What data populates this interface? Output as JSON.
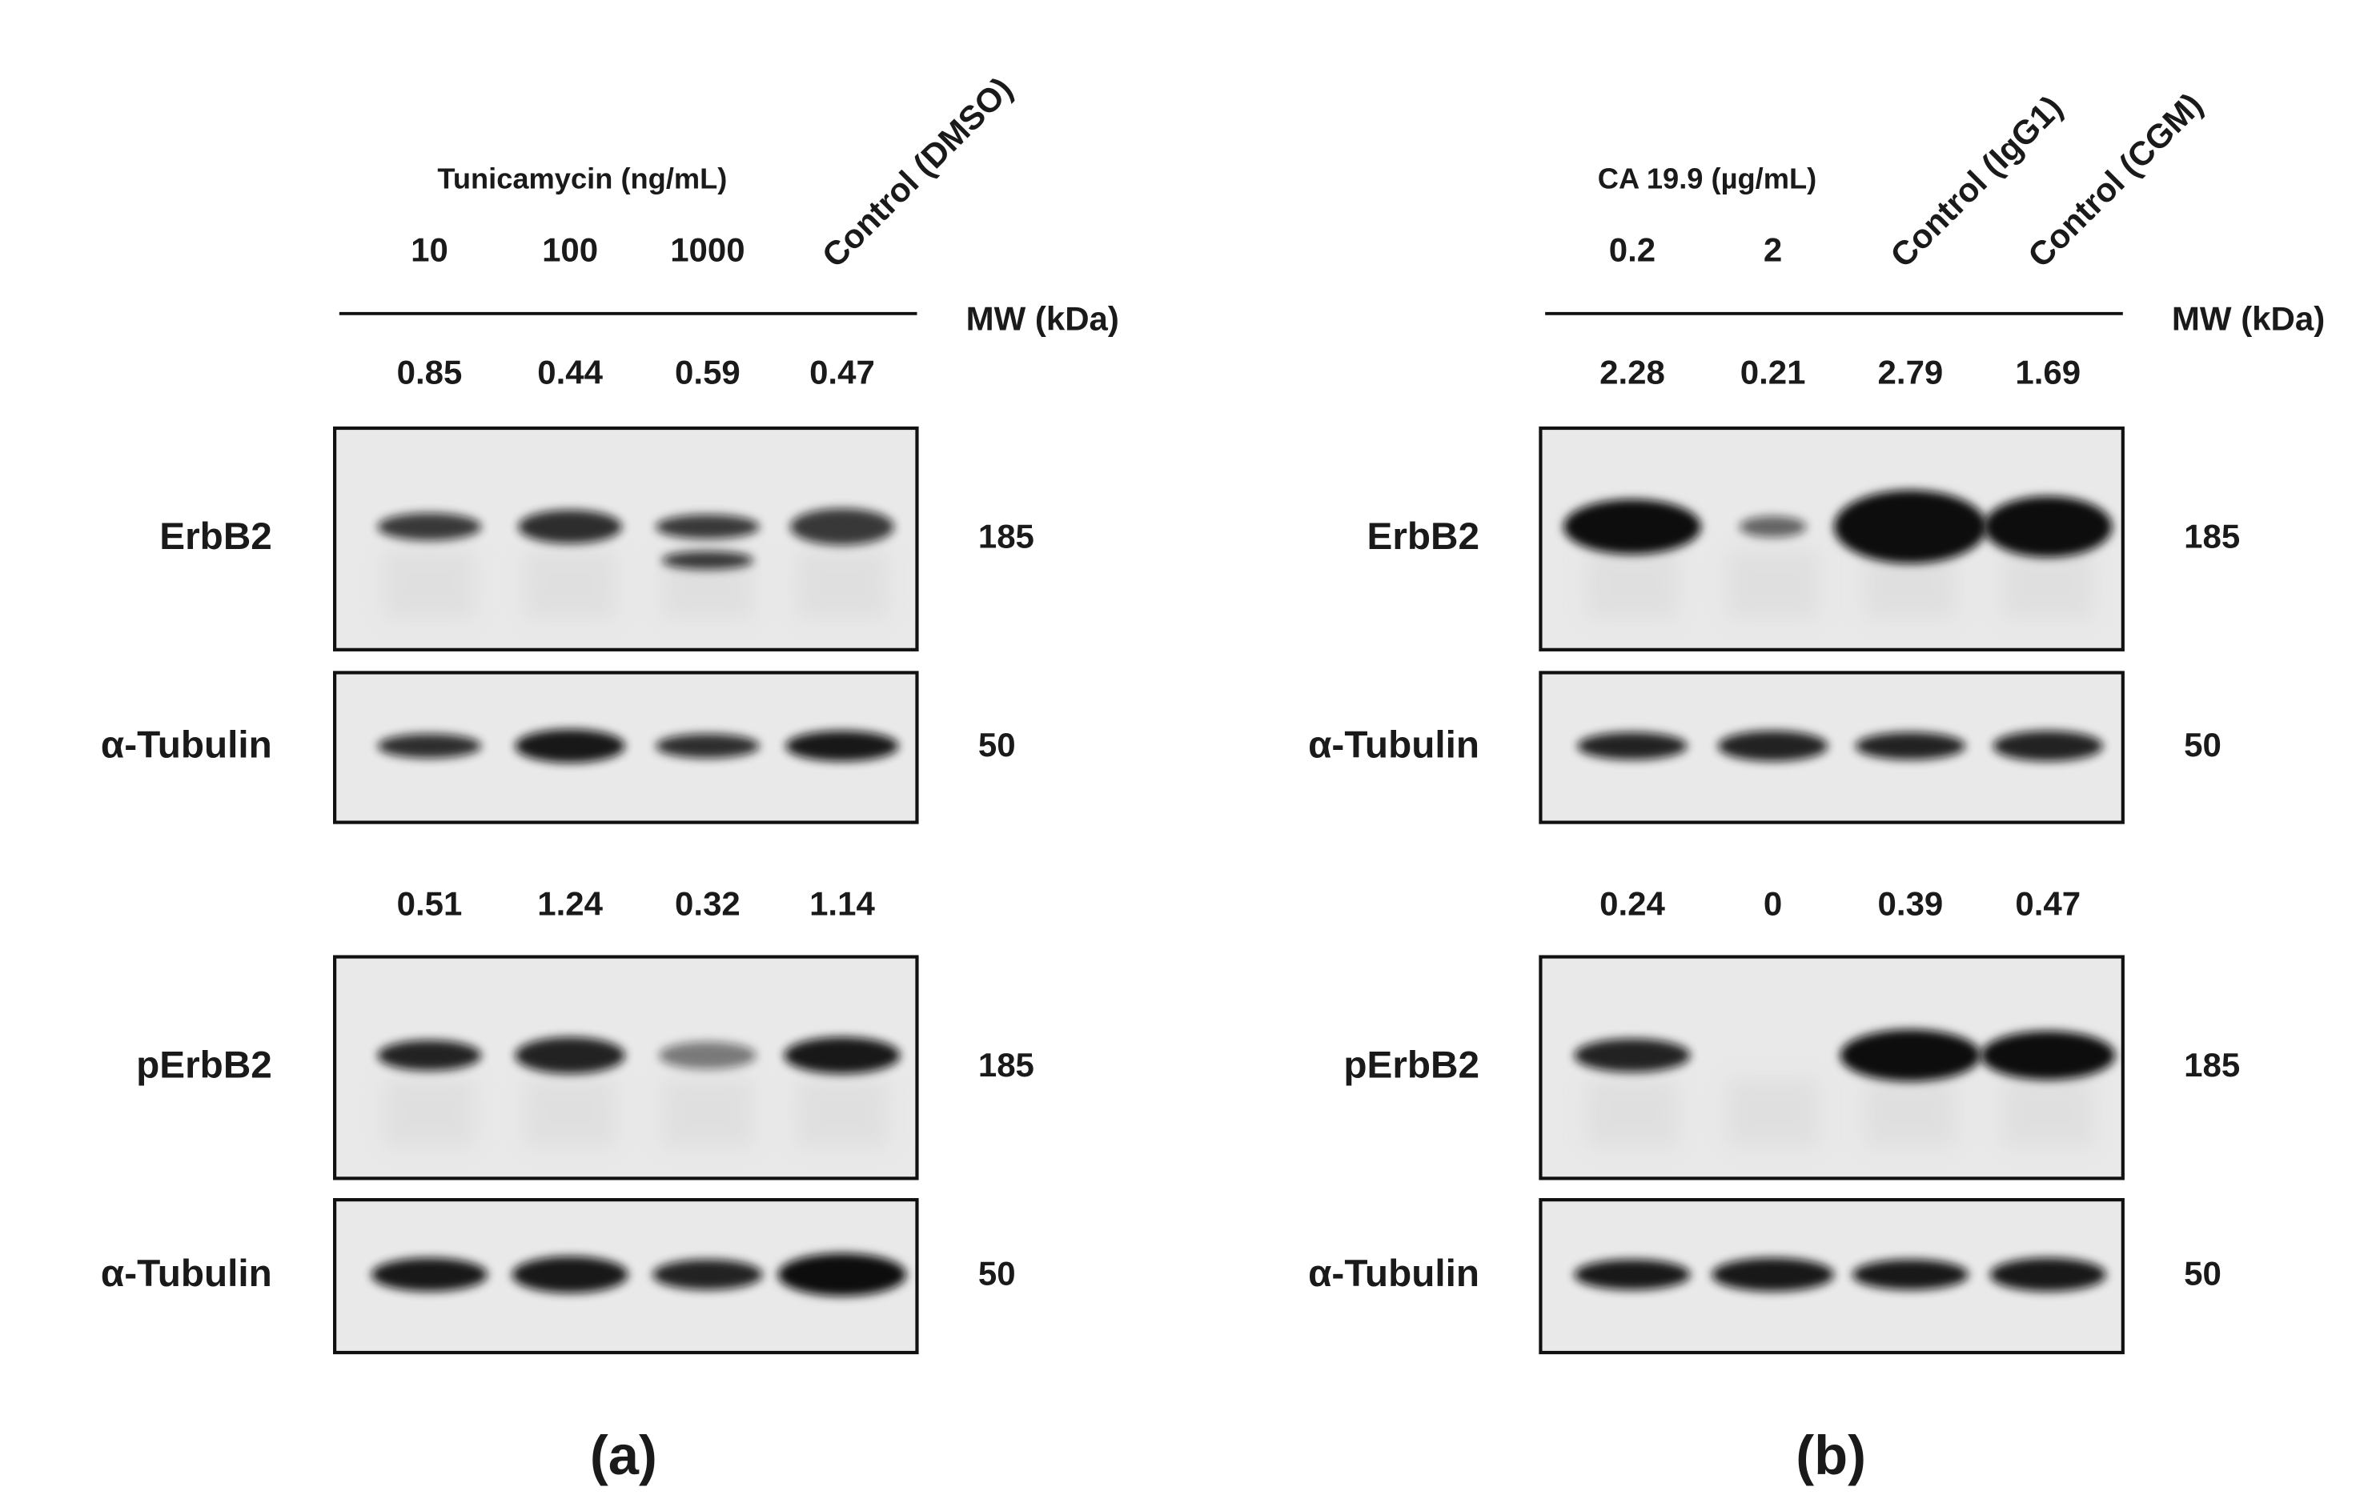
{
  "panels": [
    {
      "label": "(a)",
      "treatment": "Tunicamycin (ng/mL)",
      "lanes": [
        "10",
        "100",
        "1000",
        "Control (DMSO)"
      ],
      "mw_header": "MW (kDa)",
      "blots": [
        {
          "densities": [
            "0.85",
            "0.44",
            "0.59",
            "0.47"
          ],
          "rows": [
            {
              "name": "ErbB2",
              "mw": "185"
            },
            {
              "name": "α-Tubulin",
              "mw": "50"
            }
          ]
        },
        {
          "densities": [
            "0.51",
            "1.24",
            "0.32",
            "1.14"
          ],
          "rows": [
            {
              "name": "pErbB2",
              "mw": "185"
            },
            {
              "name": "α-Tubulin",
              "mw": "50"
            }
          ]
        }
      ]
    },
    {
      "label": "(b)",
      "treatment": "CA 19.9 (µg/mL)",
      "lanes": [
        "0.2",
        "2",
        "Control (IgG1)",
        "Control (CGM)"
      ],
      "mw_header": "MW (kDa)",
      "blots": [
        {
          "densities": [
            "2.28",
            "0.21",
            "2.79",
            "1.69"
          ],
          "rows": [
            {
              "name": "ErbB2",
              "mw": "185"
            },
            {
              "name": "α-Tubulin",
              "mw": "50"
            }
          ]
        },
        {
          "densities": [
            "0.24",
            "0",
            "0.39",
            "0.47"
          ],
          "rows": [
            {
              "name": "pErbB2",
              "mw": "185"
            },
            {
              "name": "α-Tubulin",
              "mw": "50"
            }
          ]
        }
      ]
    }
  ]
}
